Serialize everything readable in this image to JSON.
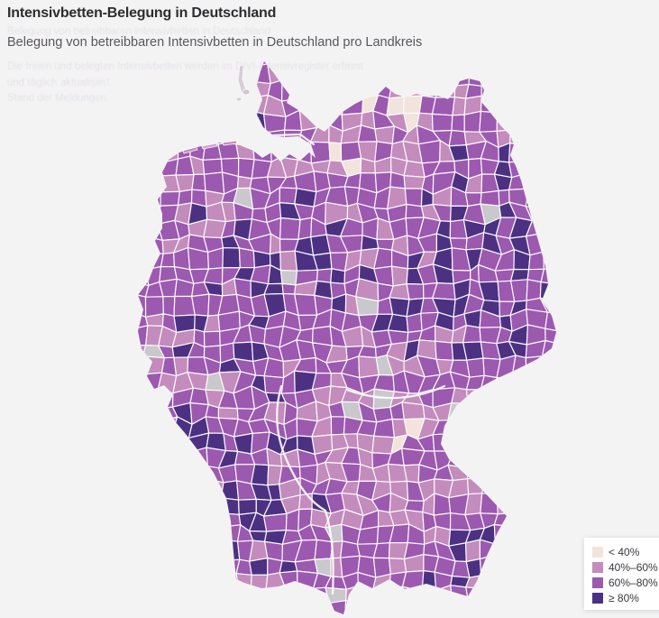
{
  "header": {
    "title": "Intensivbetten-Belegung in Deutschland",
    "subtitle": "Belegung von betreibbaren Intensivbetten in Deutschland pro Landkreis"
  },
  "ghost_text": {
    "line0": "Belegung von betreibbaren Intensivbetten in Deutschland",
    "line1": "Die freien und belegten Intensivbetten werden im DIVI-Intensivregister erfasst",
    "line2": "und täglich aktualisiert.",
    "line3": "Stand der Meldungen"
  },
  "legend": {
    "items": [
      {
        "label": "< 40%"
      },
      {
        "label": "40%–60%"
      },
      {
        "label": "60%–80%"
      },
      {
        "label": "≥ 80%"
      }
    ]
  },
  "chart_data": {
    "type": "choropleth",
    "region": "Deutschland",
    "unit": "Landkreis",
    "title": "Intensivbetten-Belegung in Deutschland",
    "subtitle": "Belegung von betreibbaren Intensivbetten in Deutschland pro Landkreis",
    "legend_position": "bottom-right",
    "bins": [
      {
        "label": "< 40%",
        "range_pct": [
          0,
          40
        ],
        "color": "#f2e4dc"
      },
      {
        "label": "40%–60%",
        "range_pct": [
          40,
          60
        ],
        "color": "#c38cbc"
      },
      {
        "label": "60%–80%",
        "range_pct": [
          60,
          80
        ],
        "color": "#9c59b0"
      },
      {
        "label": "≥ 80%",
        "range_pct": [
          80,
          100
        ],
        "color": "#4c3183"
      }
    ],
    "no_data_color": "#c9c8cc",
    "approx_share": {
      "lt40": 0.11,
      "b40_60": 0.27,
      "b60_80": 0.33,
      "ge80": 0.27,
      "no_data": 0.02
    },
    "border_color": "#ffffff",
    "background_color": "#f4f3f4"
  }
}
